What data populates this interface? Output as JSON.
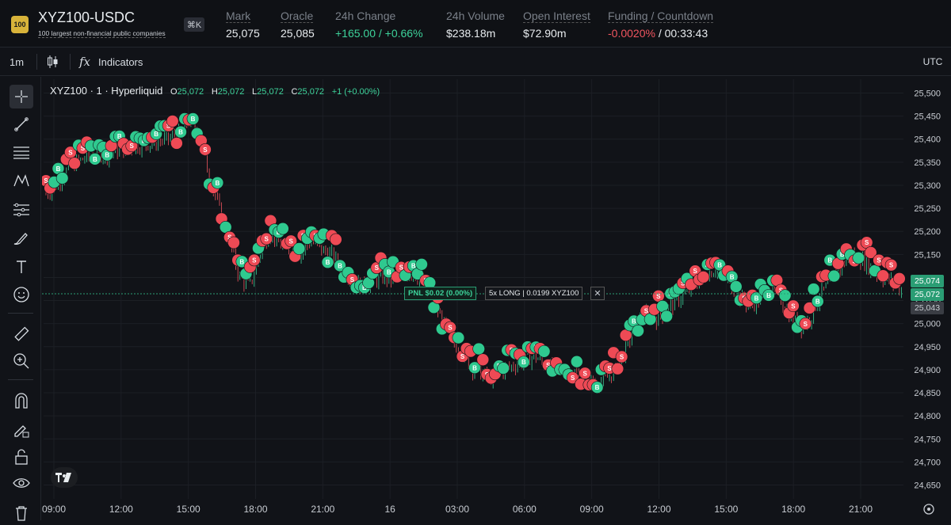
{
  "header": {
    "logo_text": "100",
    "pair": "XYZ100-USDC",
    "pair_subtitle": "100 largest non-financial public companies",
    "shortcut": "⌘K",
    "stats": [
      {
        "label": "Mark",
        "value": "25,075"
      },
      {
        "label": "Oracle",
        "value": "25,085"
      },
      {
        "label": "24h Change",
        "value": "+165.00 / +0.66%"
      },
      {
        "label": "24h Volume",
        "value": "$238.18m"
      },
      {
        "label": "Open Interest",
        "value": "$72.90m"
      },
      {
        "label": "Funding / Countdown",
        "value_funding": "-0.0020%",
        "value_countdown": "/ 00:33:43"
      }
    ]
  },
  "toolbar": {
    "interval": "1m",
    "indicators_label": "Indicators",
    "timezone": "UTC"
  },
  "sidebar": {
    "tools": [
      "crosshair-icon",
      "trendline-icon",
      "fib-icon",
      "pattern-icon",
      "prediction-icon",
      "brush-icon",
      "text-icon",
      "emoji-icon",
      "ruler-icon",
      "zoom-in-icon",
      "magnet-icon",
      "lock-drawings-icon",
      "unlock-icon",
      "eye-icon",
      "trash-icon"
    ]
  },
  "chart_legend": {
    "title": "XYZ100 · 1 · Hyperliquid",
    "o_label": "O",
    "o_value": "25,072",
    "h_label": "H",
    "h_value": "25,072",
    "l_label": "L",
    "l_value": "25,072",
    "c_label": "C",
    "c_value": "25,072",
    "change": "+1 (+0.00%)"
  },
  "position": {
    "pnl": "PNL $0.02 (0.00%)",
    "details": "5x LONG | 0.0199 XYZ100",
    "close": "✕"
  },
  "price_tags": [
    {
      "value": "25,074",
      "kind": "green"
    },
    {
      "value": "25,072",
      "kind": "green"
    },
    {
      "value": "25,043",
      "kind": "gray"
    }
  ],
  "colors": {
    "up": "#3dd29a",
    "down": "#f0555f",
    "bg": "#111318",
    "accent": "#2a9d74"
  },
  "chart_data": {
    "type": "candlestick",
    "y_ticks": [
      "25,500",
      "25,450",
      "25,400",
      "25,350",
      "25,300",
      "25,250",
      "25,200",
      "25,150",
      "25,100",
      "25,050",
      "25,000",
      "24,950",
      "24,900",
      "24,850",
      "24,800",
      "24,750",
      "24,700",
      "24,650"
    ],
    "x_ticks": [
      "09:00",
      "12:00",
      "15:00",
      "18:00",
      "21:00",
      "16",
      "03:00",
      "06:00",
      "09:00",
      "12:00",
      "15:00",
      "18:00",
      "21:00"
    ],
    "ylim": [
      24620,
      25530
    ],
    "close_series": [
      25280,
      25300,
      25330,
      25350,
      25360,
      25370,
      25365,
      25375,
      25380,
      25385,
      25390,
      25395,
      25400,
      25410,
      25440,
      25420,
      25320,
      25250,
      25180,
      25100,
      25080,
      25150,
      25200,
      25170,
      25160,
      25150,
      25180,
      25160,
      25150,
      25120,
      25100,
      25080,
      25090,
      25100,
      25095,
      25100,
      25110,
      25090,
      25050,
      25000,
      24960,
      24930,
      24900,
      24890,
      24880,
      24900,
      24910,
      24920,
      24930,
      24910,
      24900,
      24895,
      24890,
      24880,
      24870,
      24880,
      24900,
      24950,
      25000,
      25020,
      25010,
      25030,
      25050,
      25070,
      25090,
      25110,
      25120,
      25090,
      25060,
      25040,
      25050,
      25080,
      25060,
      25020,
      24990,
      25010,
      25060,
      25090,
      25120,
      25150,
      25140,
      25120,
      25100,
      25090,
      25072
    ],
    "trade_markers": "dense clusters of B (buy, green) and S (sell, red) executions along price path",
    "current_price": 25072
  }
}
